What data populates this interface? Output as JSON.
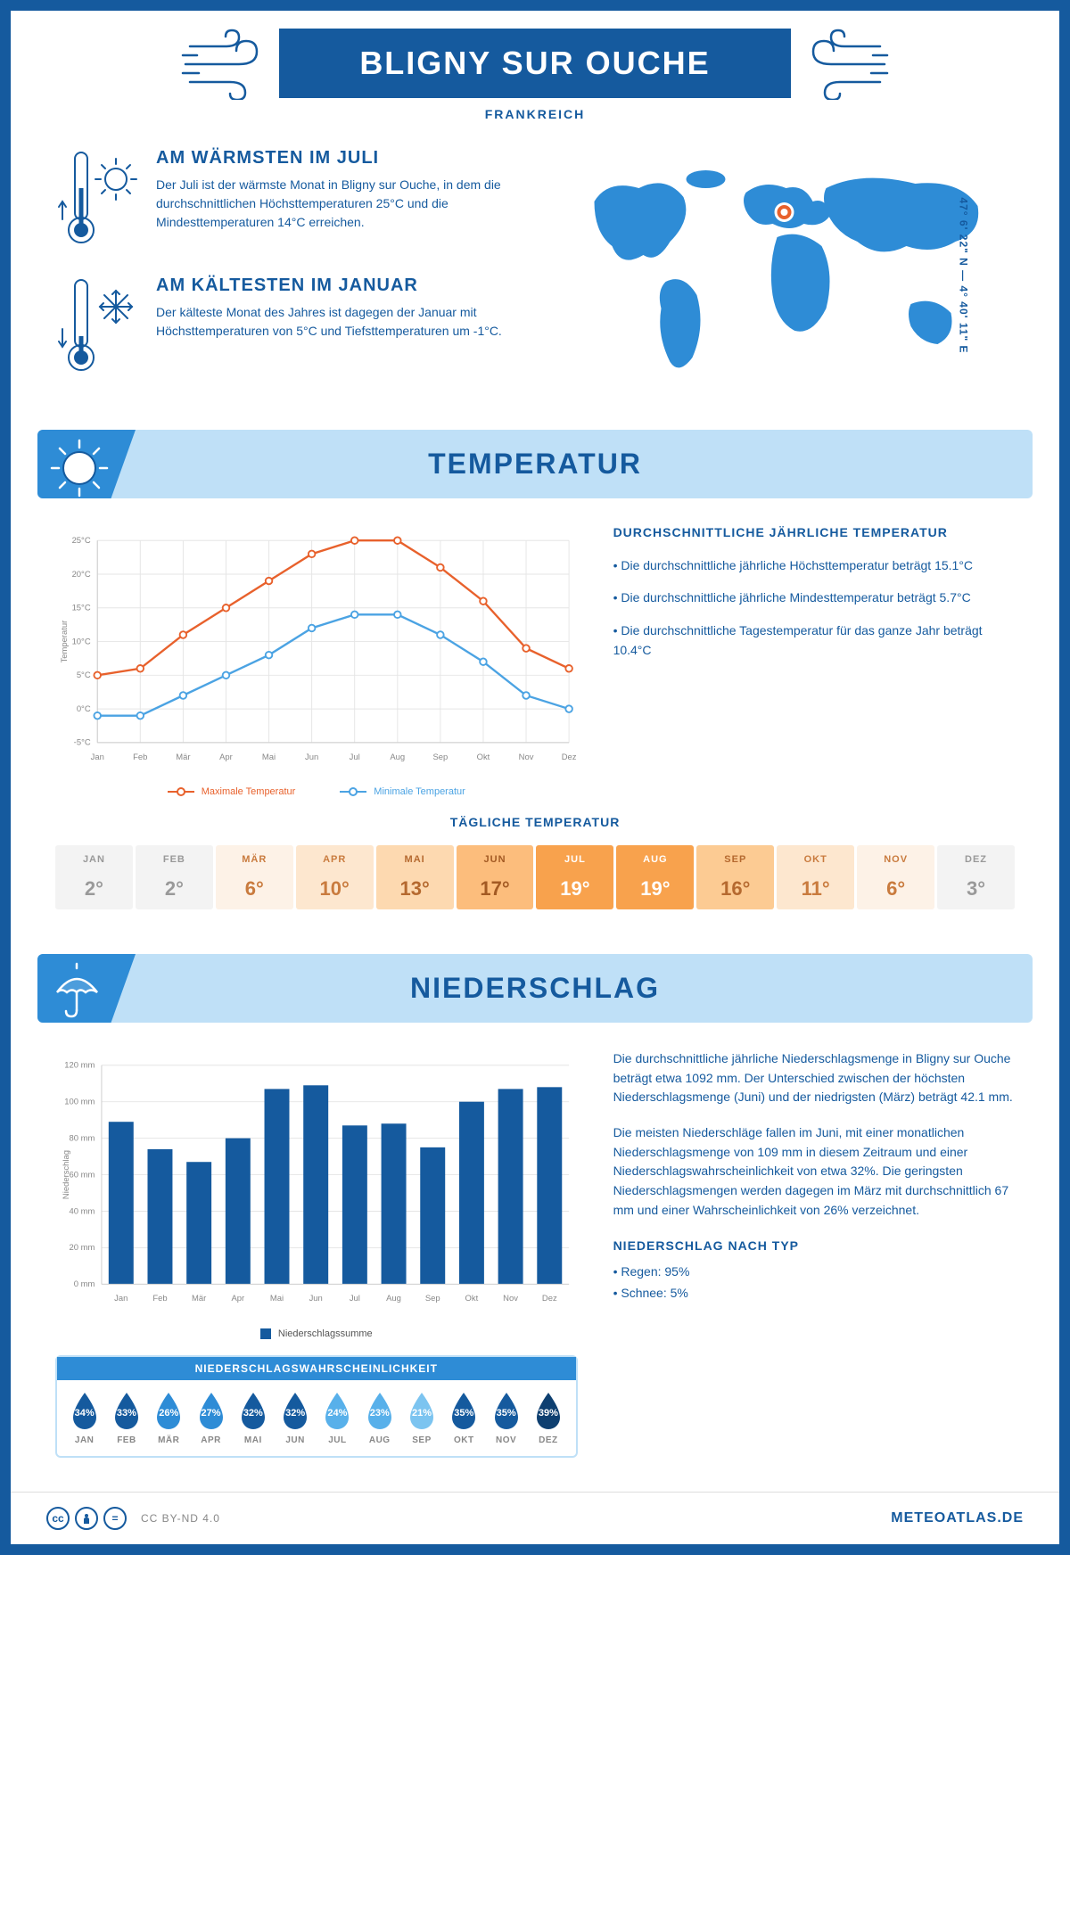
{
  "header": {
    "title": "BLIGNY SUR OUCHE",
    "subtitle": "FRANKREICH"
  },
  "coords": "47° 6' 22\" N — 4° 40' 11\" E",
  "warmest": {
    "title": "AM WÄRMSTEN IM JULI",
    "text": "Der Juli ist der wärmste Monat in Bligny sur Ouche, in dem die durchschnittlichen Höchsttemperaturen 25°C und die Mindesttemperaturen 14°C erreichen."
  },
  "coldest": {
    "title": "AM KÄLTESTEN IM JANUAR",
    "text": "Der kälteste Monat des Jahres ist dagegen der Januar mit Höchsttemperaturen von 5°C und Tiefsttemperaturen um -1°C."
  },
  "sections": {
    "temp": "TEMPERATUR",
    "precip": "NIEDERSCHLAG"
  },
  "temp_chart": {
    "type": "line",
    "months": [
      "Jan",
      "Feb",
      "Mär",
      "Apr",
      "Mai",
      "Jun",
      "Jul",
      "Aug",
      "Sep",
      "Okt",
      "Nov",
      "Dez"
    ],
    "max_series": [
      5,
      6,
      11,
      15,
      19,
      23,
      25,
      25,
      21,
      16,
      9,
      6
    ],
    "min_series": [
      -1,
      -1,
      2,
      5,
      8,
      12,
      14,
      14,
      11,
      7,
      2,
      0
    ],
    "ylabel": "Temperatur",
    "ylim": [
      -5,
      25
    ],
    "ytick_step": 5,
    "ytick_suffix": "°C",
    "colors": {
      "max": "#e8612c",
      "min": "#4ba3e3",
      "grid": "#e5e5e5",
      "axis": "#cccccc"
    },
    "legend": {
      "max": "Maximale Temperatur",
      "min": "Minimale Temperatur"
    }
  },
  "temp_desc": {
    "title": "DURCHSCHNITTLICHE JÄHRLICHE TEMPERATUR",
    "l1": "• Die durchschnittliche jährliche Höchsttemperatur beträgt 15.1°C",
    "l2": "• Die durchschnittliche jährliche Mindesttemperatur beträgt 5.7°C",
    "l3": "• Die durchschnittliche Tagestemperatur für das ganze Jahr beträgt 10.4°C"
  },
  "daily_temp": {
    "title": "TÄGLICHE TEMPERATUR",
    "months": [
      "JAN",
      "FEB",
      "MÄR",
      "APR",
      "MAI",
      "JUN",
      "JUL",
      "AUG",
      "SEP",
      "OKT",
      "NOV",
      "DEZ"
    ],
    "values": [
      "2°",
      "2°",
      "6°",
      "10°",
      "13°",
      "17°",
      "19°",
      "19°",
      "16°",
      "11°",
      "6°",
      "3°"
    ],
    "bg_colors": [
      "#f3f3f3",
      "#f3f3f3",
      "#fdf2e7",
      "#fde7cf",
      "#fdd9b0",
      "#fcbd7c",
      "#f8a24d",
      "#f8a24d",
      "#fccb93",
      "#fde7cf",
      "#fdf2e7",
      "#f3f3f3"
    ],
    "text_colors": [
      "#999",
      "#999",
      "#c97b3e",
      "#c97b3e",
      "#b5692f",
      "#a35a23",
      "#ffffff",
      "#ffffff",
      "#b5692f",
      "#c97b3e",
      "#c97b3e",
      "#999"
    ]
  },
  "precip_chart": {
    "type": "bar",
    "months": [
      "Jan",
      "Feb",
      "Mär",
      "Apr",
      "Mai",
      "Jun",
      "Jul",
      "Aug",
      "Sep",
      "Okt",
      "Nov",
      "Dez"
    ],
    "values": [
      89,
      74,
      67,
      80,
      107,
      109,
      87,
      88,
      75,
      100,
      107,
      108
    ],
    "ylabel": "Niederschlag",
    "ylim": [
      0,
      120
    ],
    "ytick_step": 20,
    "ytick_suffix": " mm",
    "bar_color": "#155a9e",
    "grid_color": "#e5e5e5",
    "legend": "Niederschlagssumme"
  },
  "precip_desc": {
    "p1": "Die durchschnittliche jährliche Niederschlagsmenge in Bligny sur Ouche beträgt etwa 1092 mm. Der Unterschied zwischen der höchsten Niederschlagsmenge (Juni) und der niedrigsten (März) beträgt 42.1 mm.",
    "p2": "Die meisten Niederschläge fallen im Juni, mit einer monatlichen Niederschlagsmenge von 109 mm in diesem Zeitraum und einer Niederschlagswahrscheinlichkeit von etwa 32%. Die geringsten Niederschlagsmengen werden dagegen im März mit durchschnittlich 67 mm und einer Wahrscheinlichkeit von 26% verzeichnet.",
    "type_title": "NIEDERSCHLAG NACH TYP",
    "type_l1": "• Regen: 95%",
    "type_l2": "• Schnee: 5%"
  },
  "precip_prob": {
    "title": "NIEDERSCHLAGSWAHRSCHEINLICHKEIT",
    "months": [
      "JAN",
      "FEB",
      "MÄR",
      "APR",
      "MAI",
      "JUN",
      "JUL",
      "AUG",
      "SEP",
      "OKT",
      "NOV",
      "DEZ"
    ],
    "values": [
      "34%",
      "33%",
      "26%",
      "27%",
      "32%",
      "32%",
      "24%",
      "23%",
      "21%",
      "35%",
      "35%",
      "39%"
    ],
    "colors": [
      "#155a9e",
      "#155a9e",
      "#2e8cd6",
      "#2e8cd6",
      "#155a9e",
      "#155a9e",
      "#58b0ea",
      "#58b0ea",
      "#7cc4f0",
      "#155a9e",
      "#155a9e",
      "#0e3f70"
    ]
  },
  "footer": {
    "license": "CC BY-ND 4.0",
    "brand": "METEOATLAS.DE"
  },
  "colors": {
    "primary": "#155a9e",
    "light": "#bfe0f7",
    "mid": "#2e8cd6",
    "map": "#2e8cd6",
    "marker": "#e8612c"
  }
}
